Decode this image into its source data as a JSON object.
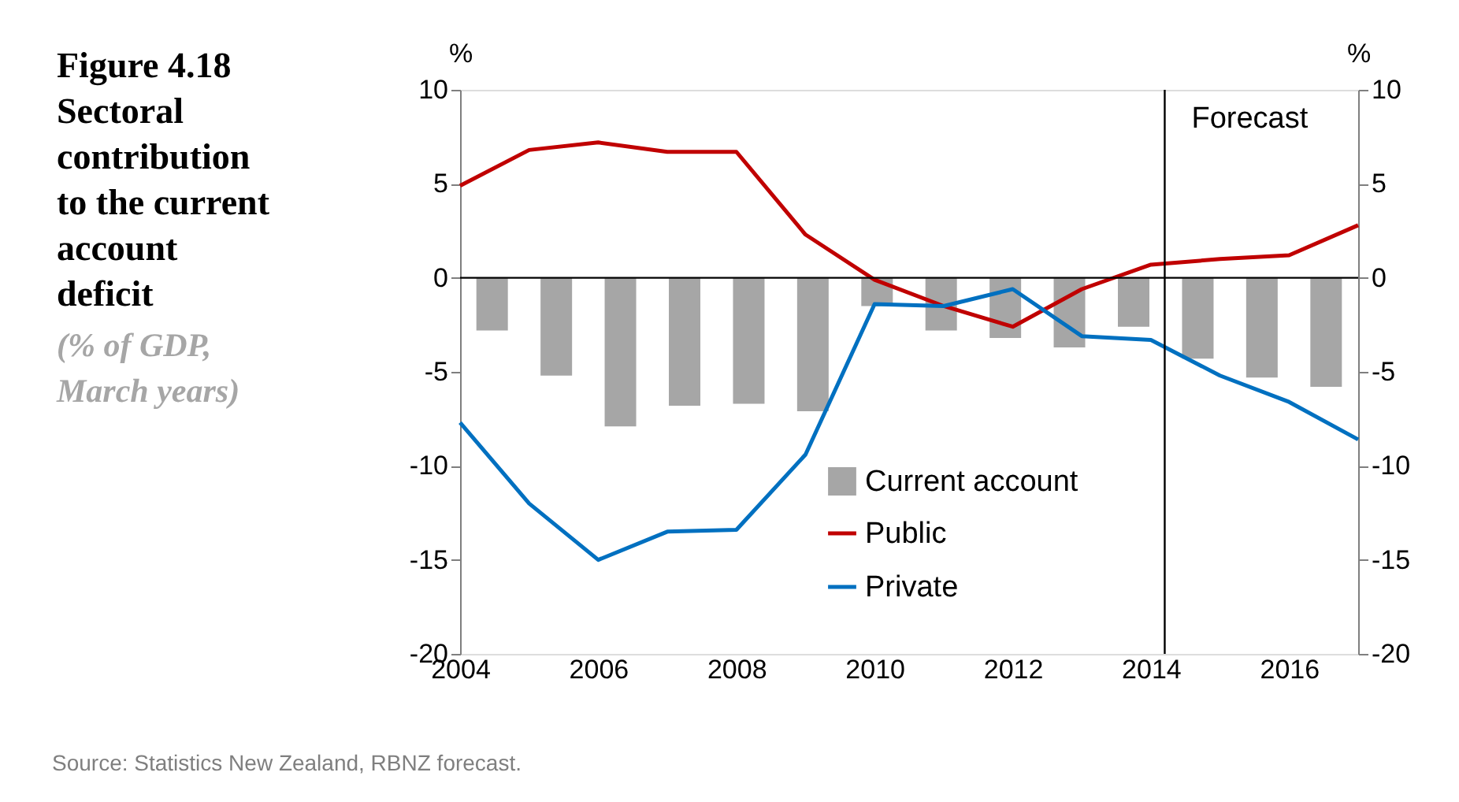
{
  "chart_data": {
    "type": "line",
    "title": "Figure 4.18 Sectoral contribution to the current account deficit",
    "subtitle": "(% of GDP, March years)",
    "ylabel": "%",
    "y2label": "%",
    "x": [
      2004,
      2005,
      2006,
      2007,
      2008,
      2009,
      2010,
      2011,
      2012,
      2013,
      2014,
      2015,
      2016,
      2017
    ],
    "series": [
      {
        "name": "Current account",
        "type": "bar",
        "color": "#a6a6a6",
        "x": [
          2004.464,
          2005.393,
          2006.321,
          2007.25,
          2008.179,
          2009.107,
          2010.036,
          2010.964,
          2011.893,
          2012.821,
          2013.75,
          2014.679,
          2015.607,
          2016.536
        ],
        "values": [
          -2.8,
          -5.2,
          -7.9,
          -6.8,
          -6.7,
          -7.1,
          -1.5,
          -2.8,
          -3.2,
          -3.7,
          -2.6,
          -4.3,
          -5.3,
          -5.8
        ]
      },
      {
        "name": "Public",
        "color": "#c00000",
        "values": [
          4.9,
          6.8,
          7.2,
          6.7,
          6.7,
          2.3,
          -0.1,
          -1.5,
          -2.6,
          -0.6,
          0.7,
          1.0,
          1.2,
          2.8
        ]
      },
      {
        "name": "Private",
        "color": "#0070c0",
        "values": [
          -7.7,
          -12.0,
          -15.0,
          -13.5,
          -13.4,
          -9.4,
          -1.4,
          -1.5,
          -0.6,
          -3.1,
          -3.3,
          -5.2,
          -6.6,
          -8.6
        ]
      }
    ],
    "xlim": [
      2004,
      2017
    ],
    "xticks": [
      2004,
      2006,
      2008,
      2010,
      2012,
      2014,
      2016
    ],
    "ylim": [
      -20,
      10
    ],
    "yticks": [
      -20,
      -15,
      -10,
      -5,
      0,
      5,
      10
    ],
    "y2lim": [
      -20,
      10
    ],
    "y2ticks": [
      -20,
      -15,
      -10,
      -5,
      0,
      5,
      10
    ],
    "ref_lines": [
      {
        "axis": "y",
        "value": 0,
        "color": "#000000"
      },
      {
        "axis": "x",
        "value": 2014.2,
        "label": "Forecast",
        "color": "#000000"
      }
    ],
    "annotations": [
      "Source: Statistics New Zealand, RBNZ forecast."
    ],
    "legend": "bottom",
    "grid": false,
    "marker": "none",
    "line_style": "solid"
  }
}
